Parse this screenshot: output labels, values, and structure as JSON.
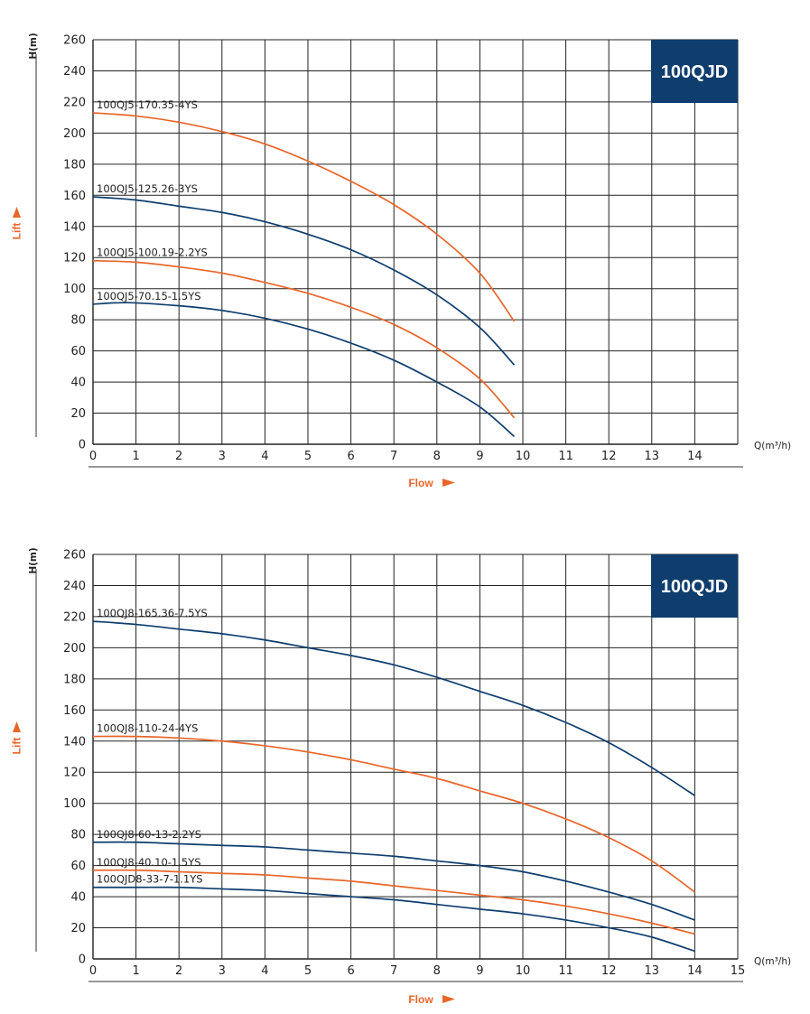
{
  "colors": {
    "navy": "#0e3d6e",
    "orange": "#e8662a",
    "grid": "#222222",
    "badge": "#0e3d6e"
  },
  "chart_data": [
    {
      "type": "line",
      "title": "100QJD",
      "xlabel": "Flow",
      "ylabel": "Lift",
      "x_unit": "Q(m³/h)",
      "y_unit": "H(m)",
      "xlim": [
        0,
        15
      ],
      "ylim": [
        0,
        260
      ],
      "x_ticks": [
        0,
        1,
        2,
        3,
        4,
        5,
        6,
        7,
        8,
        9,
        10,
        11,
        12,
        13,
        14
      ],
      "y_ticks": [
        0,
        20,
        40,
        60,
        80,
        100,
        120,
        140,
        160,
        180,
        200,
        220,
        240,
        260
      ],
      "grid": true,
      "series": [
        {
          "name": "100QJ5-170.35-4YS",
          "color": "orange",
          "x": [
            0,
            1,
            2,
            3,
            4,
            5,
            6,
            7,
            8,
            9,
            9.8
          ],
          "y": [
            213,
            211,
            207,
            201,
            193,
            182,
            169,
            154,
            135,
            110,
            79
          ]
        },
        {
          "name": "100QJ5-125.26-3YS",
          "color": "navy",
          "x": [
            0,
            1,
            2,
            3,
            4,
            5,
            6,
            7,
            8,
            9,
            9.8
          ],
          "y": [
            159,
            157,
            153,
            149,
            143,
            135,
            125,
            112,
            96,
            75,
            51
          ]
        },
        {
          "name": "100QJ5-100.19-2.2YS",
          "color": "orange",
          "x": [
            0,
            1,
            2,
            3,
            4,
            5,
            6,
            7,
            8,
            9,
            9.8
          ],
          "y": [
            118,
            117,
            114,
            110,
            104,
            97,
            88,
            77,
            62,
            42,
            17
          ]
        },
        {
          "name": "100QJ5-70.15-1.5YS",
          "color": "navy",
          "x": [
            0,
            0.8,
            2,
            3,
            4,
            5,
            6,
            7,
            8,
            9,
            9.8
          ],
          "y": [
            90,
            91,
            89,
            86,
            81,
            74,
            65,
            54,
            40,
            24,
            5
          ]
        }
      ]
    },
    {
      "type": "line",
      "title": "100QJD",
      "xlabel": "Flow",
      "ylabel": "Lift",
      "x_unit": "Q(m³/h)",
      "y_unit": "H(m)",
      "xlim": [
        0,
        15
      ],
      "ylim": [
        0,
        260
      ],
      "x_ticks": [
        0,
        1,
        2,
        3,
        4,
        5,
        6,
        7,
        8,
        9,
        10,
        11,
        12,
        13,
        14,
        15
      ],
      "y_ticks": [
        0,
        20,
        40,
        60,
        80,
        100,
        120,
        140,
        160,
        180,
        200,
        220,
        240,
        260
      ],
      "grid": true,
      "series": [
        {
          "name": "100QJ8-165.36-7.5YS",
          "color": "navy",
          "x": [
            0,
            1,
            2,
            3,
            4,
            5,
            6,
            7,
            8,
            9,
            10,
            11,
            12,
            13,
            14
          ],
          "y": [
            217,
            215,
            212,
            209,
            205,
            200,
            195,
            189,
            181,
            172,
            163,
            152,
            139,
            123,
            105
          ]
        },
        {
          "name": "100QJ8-110-24-4YS",
          "color": "orange",
          "x": [
            0,
            1,
            2,
            3,
            4,
            5,
            6,
            7,
            8,
            9,
            10,
            11,
            12,
            13,
            14
          ],
          "y": [
            143,
            143,
            142,
            140,
            137,
            133,
            128,
            122,
            116,
            108,
            100,
            90,
            78,
            63,
            43
          ]
        },
        {
          "name": "100QJ8-60-13-2.2YS",
          "color": "navy",
          "x": [
            0,
            1,
            2,
            3,
            4,
            5,
            6,
            7,
            8,
            9,
            10,
            11,
            12,
            13,
            14
          ],
          "y": [
            75,
            75,
            74,
            73,
            72,
            70,
            68,
            66,
            63,
            60,
            56,
            50,
            43,
            35,
            25
          ]
        },
        {
          "name": "100QJ8-40.10-1.5YS",
          "color": "orange",
          "x": [
            0,
            1,
            2,
            3,
            4,
            5,
            6,
            7,
            8,
            9,
            10,
            11,
            12,
            13,
            14
          ],
          "y": [
            57,
            57,
            56,
            55,
            54,
            52,
            50,
            47,
            44,
            41,
            38,
            34,
            29,
            23,
            16
          ]
        },
        {
          "name": "100QJD8-33-7-1.1YS",
          "color": "navy",
          "x": [
            0,
            1,
            2,
            3,
            4,
            5,
            6,
            7,
            8,
            9,
            10,
            11,
            12,
            13,
            14
          ],
          "y": [
            46,
            46,
            46,
            45,
            44,
            42,
            40,
            38,
            35,
            32,
            29,
            25,
            20,
            14,
            5
          ]
        }
      ]
    }
  ]
}
